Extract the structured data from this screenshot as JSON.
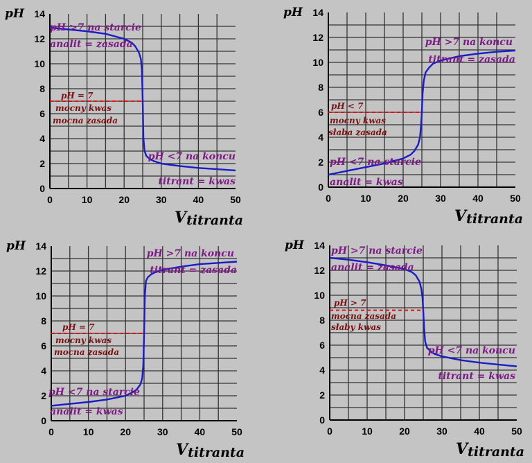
{
  "chart_data": [
    {
      "type": "line",
      "title": "",
      "ylabel": "pH",
      "xlabel_main": "V",
      "xlabel_sub": "titranta",
      "xlim": [
        0,
        50
      ],
      "ylim": [
        0,
        14
      ],
      "x_ticks": [
        0,
        10,
        20,
        30,
        40,
        50
      ],
      "y_ticks": [
        0,
        2,
        4,
        6,
        8,
        10,
        12,
        14
      ],
      "grid": true,
      "equivalence_ph": 7,
      "equivalence_label": "pH = 7",
      "conditions": [
        "mocny kwas",
        "mocna zasada"
      ],
      "start_lines": [
        "pH >7 na starcie",
        "analit = zasada"
      ],
      "end_lines": [
        "pH <7 na koncu",
        "titrant = kwas"
      ],
      "series": [
        {
          "x": [
            0,
            5,
            10,
            15,
            20,
            22,
            23,
            24,
            24.5,
            24.8,
            25,
            25.2,
            25.5,
            26,
            27,
            28,
            30,
            35,
            40,
            45,
            50
          ],
          "y": [
            12.9,
            12.75,
            12.6,
            12.4,
            12.0,
            11.7,
            11.4,
            10.9,
            10.4,
            9.5,
            7.0,
            4.0,
            3.0,
            2.6,
            2.35,
            2.2,
            2.0,
            1.8,
            1.65,
            1.55,
            1.45
          ]
        }
      ]
    },
    {
      "type": "line",
      "title": "",
      "ylabel": "pH",
      "xlabel_main": "V",
      "xlabel_sub": "titranta",
      "xlim": [
        0,
        50
      ],
      "ylim": [
        0,
        14
      ],
      "x_ticks": [
        0,
        10,
        20,
        30,
        40,
        50
      ],
      "y_ticks": [
        0,
        2,
        4,
        6,
        8,
        10,
        12,
        14
      ],
      "grid": true,
      "equivalence_ph": 6,
      "equivalence_label": "pH < 7",
      "conditions": [
        "mocny kwas",
        "słaba zasada"
      ],
      "start_lines": [
        "pH <7 na starcie",
        "analit = kwas"
      ],
      "end_lines": [
        "pH >7 na koncu",
        "titrant = zasada"
      ],
      "series": [
        {
          "x": [
            0,
            5,
            10,
            15,
            20,
            22,
            23,
            24,
            24.5,
            24.8,
            25,
            25.2,
            25.5,
            26,
            27,
            28,
            30,
            35,
            40,
            45,
            50
          ],
          "y": [
            1.0,
            1.3,
            1.6,
            1.9,
            2.3,
            2.6,
            2.9,
            3.4,
            4.0,
            5.0,
            6.0,
            7.5,
            8.5,
            9.2,
            9.6,
            9.9,
            10.15,
            10.5,
            10.7,
            10.85,
            10.95
          ]
        }
      ]
    },
    {
      "type": "line",
      "title": "",
      "ylabel": "pH",
      "xlabel_main": "V",
      "xlabel_sub": "titranta",
      "xlim": [
        0,
        50
      ],
      "ylim": [
        0,
        14
      ],
      "x_ticks": [
        0,
        10,
        20,
        30,
        40,
        50
      ],
      "y_ticks": [
        0,
        2,
        4,
        6,
        8,
        10,
        12,
        14
      ],
      "grid": true,
      "equivalence_ph": 7,
      "equivalence_label": "pH = 7",
      "conditions": [
        "mocny kwas",
        "mocna zasada"
      ],
      "start_lines": [
        "pH <7 na starcie",
        "analit = kwas"
      ],
      "end_lines": [
        "pH >7 na koncu",
        "titrant = zasada"
      ],
      "series": [
        {
          "x": [
            0,
            5,
            10,
            15,
            20,
            22,
            23,
            24,
            24.5,
            24.8,
            25,
            25.2,
            25.5,
            26,
            27,
            28,
            30,
            35,
            40,
            45,
            50
          ],
          "y": [
            1.2,
            1.35,
            1.5,
            1.7,
            2.0,
            2.3,
            2.5,
            2.9,
            3.4,
            4.5,
            7.0,
            10.0,
            11.2,
            11.5,
            11.75,
            11.9,
            12.1,
            12.35,
            12.55,
            12.65,
            12.75
          ]
        }
      ]
    },
    {
      "type": "line",
      "title": "",
      "ylabel": "pH",
      "xlabel_main": "V",
      "xlabel_sub": "titranta",
      "xlim": [
        0,
        50
      ],
      "ylim": [
        0,
        14
      ],
      "x_ticks": [
        0,
        10,
        20,
        30,
        40,
        50
      ],
      "y_ticks": [
        0,
        2,
        4,
        6,
        8,
        10,
        12,
        14
      ],
      "grid": true,
      "equivalence_ph": 8.8,
      "equivalence_label": "pH > 7",
      "conditions": [
        "mocna zasada",
        "słaby kwas"
      ],
      "start_lines": [
        "pH >7 na starcie",
        "analit = zasada"
      ],
      "end_lines": [
        "pH <7 na koncu",
        "titrant = kwas"
      ],
      "series": [
        {
          "x": [
            0,
            5,
            10,
            15,
            20,
            22,
            23,
            24,
            24.5,
            24.8,
            25,
            25.2,
            25.5,
            26,
            27,
            28,
            30,
            35,
            40,
            45,
            50
          ],
          "y": [
            13.0,
            12.85,
            12.65,
            12.4,
            12.1,
            11.85,
            11.6,
            11.1,
            10.5,
            9.8,
            8.8,
            7.5,
            6.3,
            5.8,
            5.5,
            5.3,
            5.1,
            4.8,
            4.6,
            4.45,
            4.3
          ]
        }
      ]
    }
  ]
}
